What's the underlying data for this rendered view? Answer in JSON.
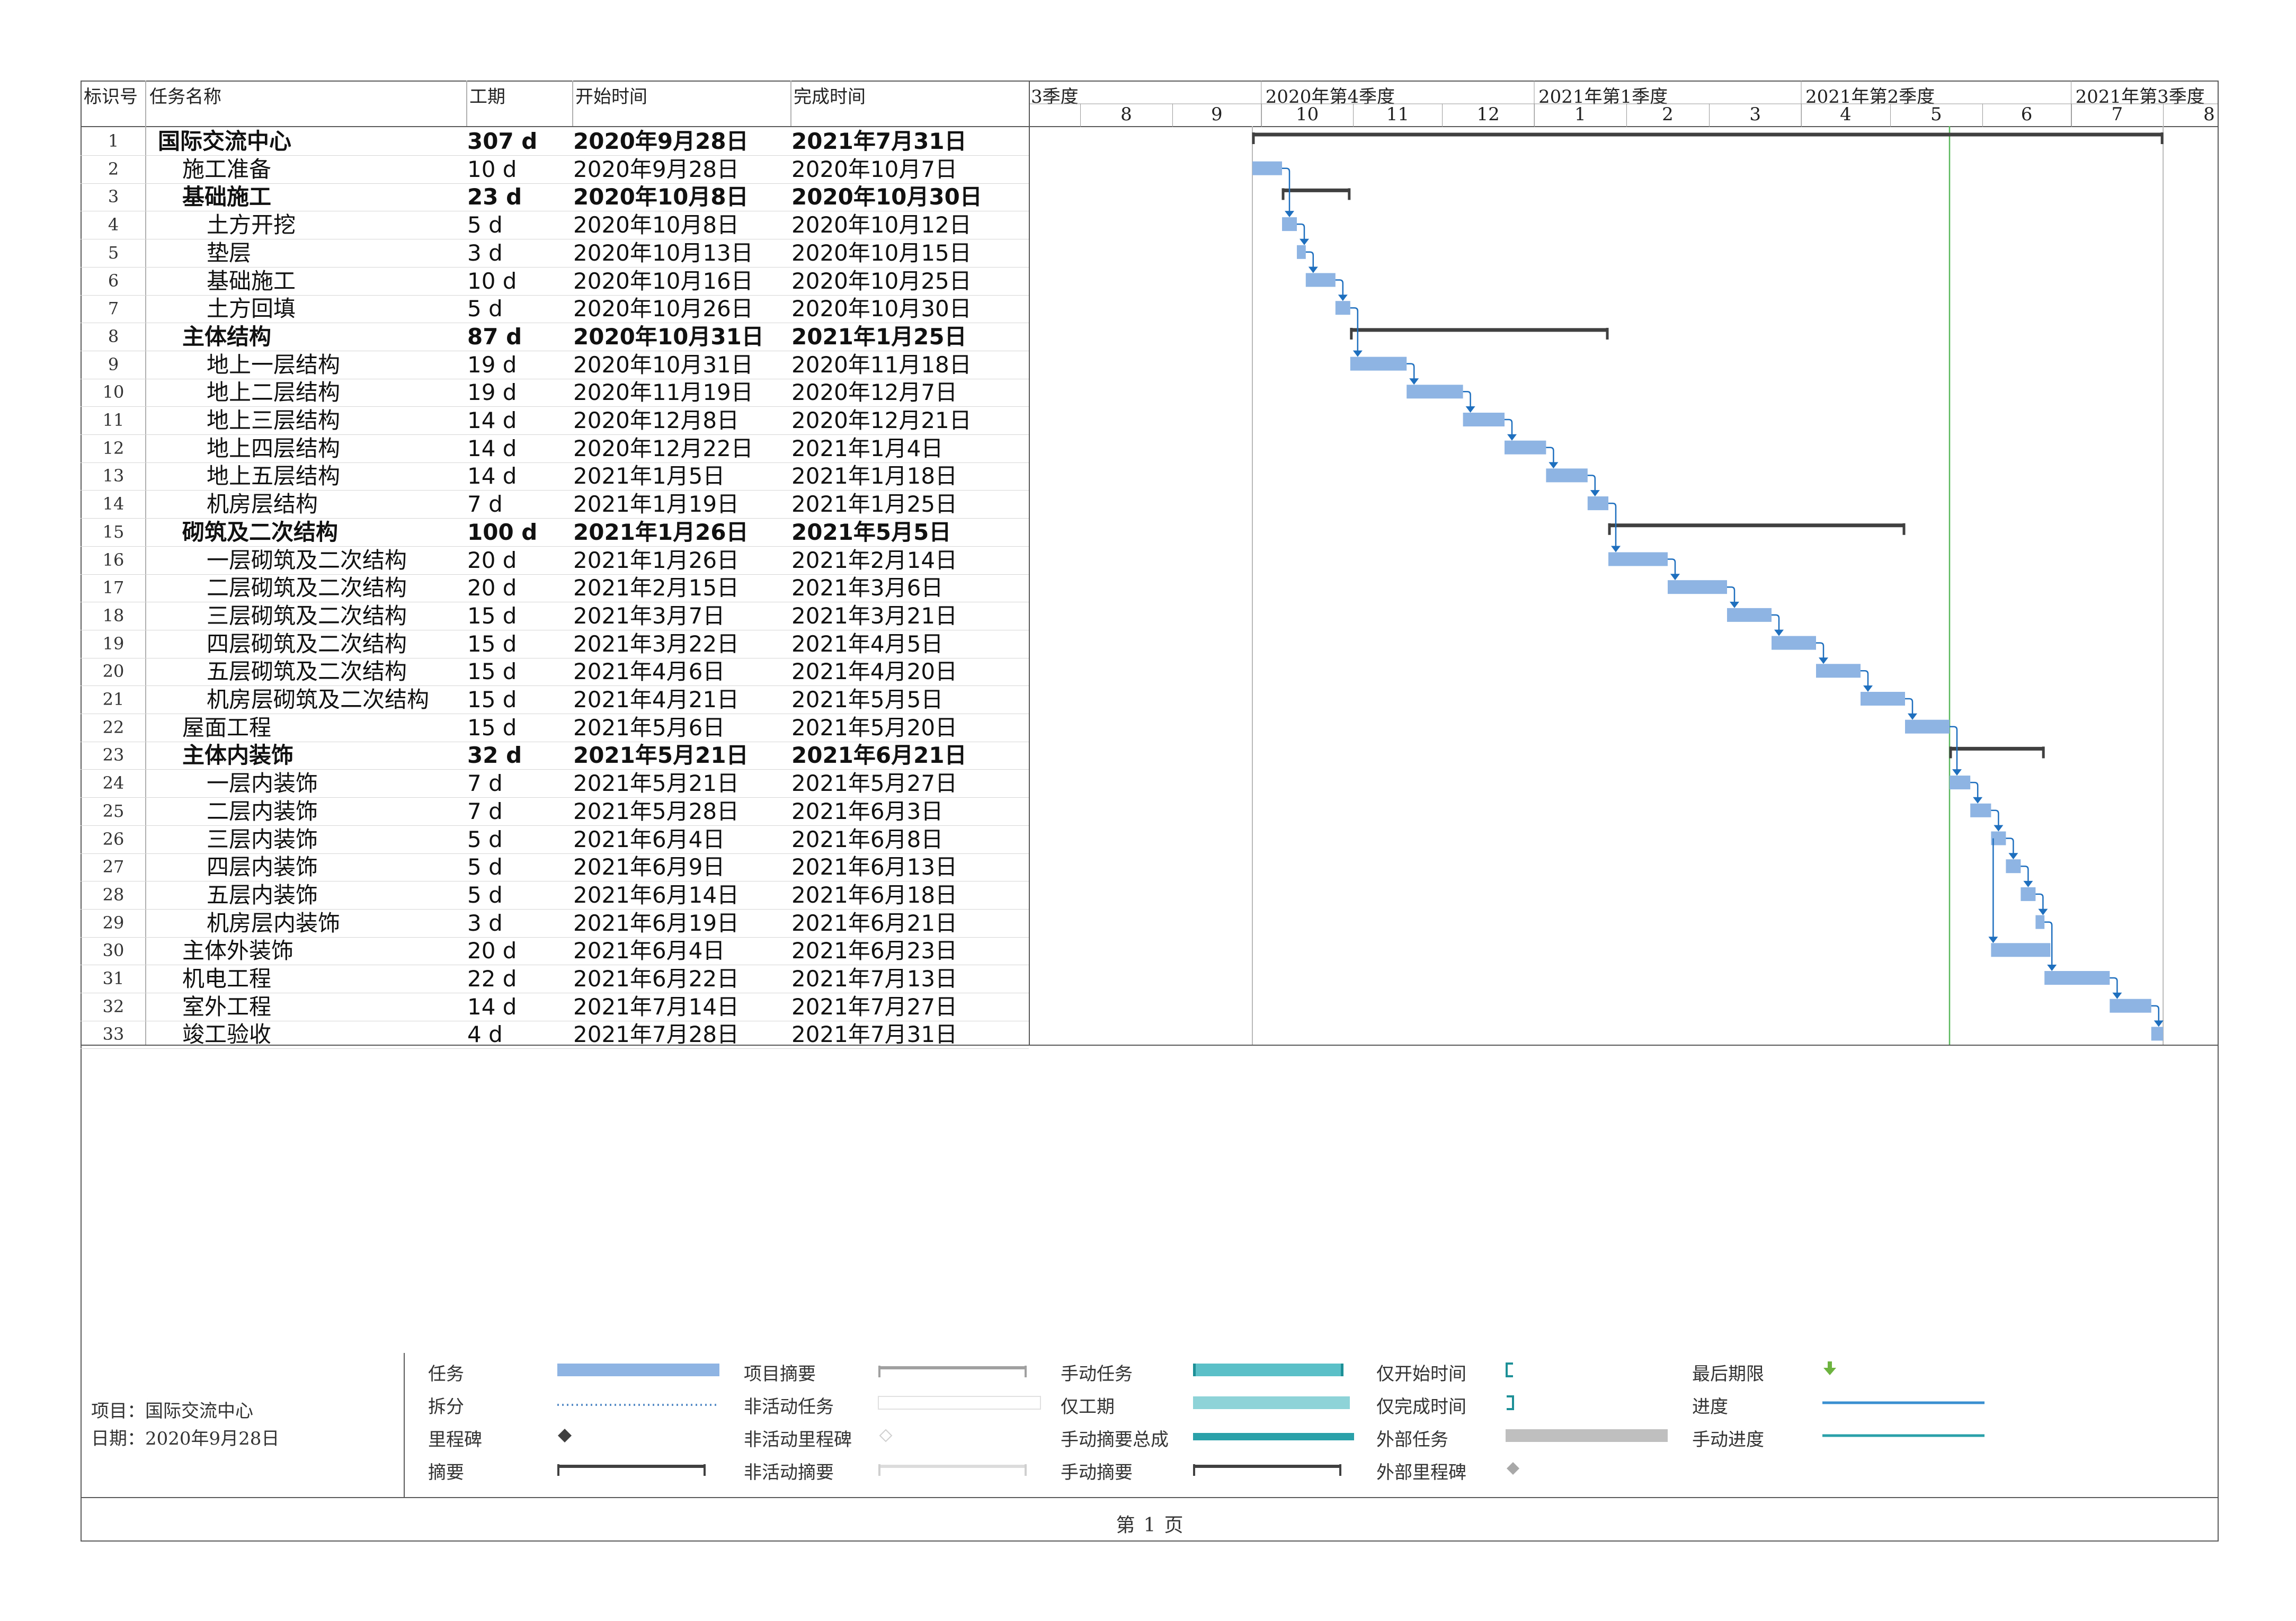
{
  "table": {
    "headers": {
      "id": "标识号",
      "name": "任务名称",
      "duration": "工期",
      "start": "开始时间",
      "finish": "完成时间"
    }
  },
  "timeline": {
    "quarters": [
      {
        "label": "3季度",
        "start": "2020-07-01"
      },
      {
        "label": "2020年第4季度",
        "start": "2020-10-01"
      },
      {
        "label": "2021年第1季度",
        "start": "2021-01-01"
      },
      {
        "label": "2021年第2季度",
        "start": "2021-04-01"
      },
      {
        "label": "2021年第3季度",
        "start": "2021-07-01"
      }
    ],
    "months": [
      {
        "label": "8",
        "start": "2020-08-01"
      },
      {
        "label": "9",
        "start": "2020-09-01"
      },
      {
        "label": "10",
        "start": "2020-10-01"
      },
      {
        "label": "11",
        "start": "2020-11-01"
      },
      {
        "label": "12",
        "start": "2020-12-01"
      },
      {
        "label": "1",
        "start": "2021-01-01"
      },
      {
        "label": "2",
        "start": "2021-02-01"
      },
      {
        "label": "3",
        "start": "2021-03-01"
      },
      {
        "label": "4",
        "start": "2021-04-01"
      },
      {
        "label": "5",
        "start": "2021-05-01"
      },
      {
        "label": "6",
        "start": "2021-06-01"
      },
      {
        "label": "7",
        "start": "2021-07-01"
      },
      {
        "label": "8",
        "start": "2021-08-01"
      }
    ],
    "status_date": "2021-05-21"
  },
  "chart_data": {
    "type": "gantt",
    "tasks": [
      {
        "id": "1",
        "name": "国际交流中心",
        "level": 0,
        "summary": true,
        "duration": "307 d",
        "start_text": "2020年9月28日",
        "finish_text": "2021年7月31日",
        "start": "2020-09-28",
        "finish": "2021-07-31"
      },
      {
        "id": "2",
        "name": "施工准备",
        "level": 1,
        "summary": false,
        "duration": "10 d",
        "start_text": "2020年9月28日",
        "finish_text": "2020年10月7日",
        "start": "2020-09-28",
        "finish": "2020-10-07"
      },
      {
        "id": "3",
        "name": "基础施工",
        "level": 1,
        "summary": true,
        "duration": "23 d",
        "start_text": "2020年10月8日",
        "finish_text": "2020年10月30日",
        "start": "2020-10-08",
        "finish": "2020-10-30"
      },
      {
        "id": "4",
        "name": "土方开挖",
        "level": 2,
        "summary": false,
        "duration": "5 d",
        "start_text": "2020年10月8日",
        "finish_text": "2020年10月12日",
        "start": "2020-10-08",
        "finish": "2020-10-12"
      },
      {
        "id": "5",
        "name": "垫层",
        "level": 2,
        "summary": false,
        "duration": "3 d",
        "start_text": "2020年10月13日",
        "finish_text": "2020年10月15日",
        "start": "2020-10-13",
        "finish": "2020-10-15"
      },
      {
        "id": "6",
        "name": "基础施工",
        "level": 2,
        "summary": false,
        "duration": "10 d",
        "start_text": "2020年10月16日",
        "finish_text": "2020年10月25日",
        "start": "2020-10-16",
        "finish": "2020-10-25"
      },
      {
        "id": "7",
        "name": "土方回填",
        "level": 2,
        "summary": false,
        "duration": "5 d",
        "start_text": "2020年10月26日",
        "finish_text": "2020年10月30日",
        "start": "2020-10-26",
        "finish": "2020-10-30"
      },
      {
        "id": "8",
        "name": "主体结构",
        "level": 1,
        "summary": true,
        "duration": "87 d",
        "start_text": "2020年10月31日",
        "finish_text": "2021年1月25日",
        "start": "2020-10-31",
        "finish": "2021-01-25"
      },
      {
        "id": "9",
        "name": "地上一层结构",
        "level": 2,
        "summary": false,
        "duration": "19 d",
        "start_text": "2020年10月31日",
        "finish_text": "2020年11月18日",
        "start": "2020-10-31",
        "finish": "2020-11-18"
      },
      {
        "id": "10",
        "name": "地上二层结构",
        "level": 2,
        "summary": false,
        "duration": "19 d",
        "start_text": "2020年11月19日",
        "finish_text": "2020年12月7日",
        "start": "2020-11-19",
        "finish": "2020-12-07"
      },
      {
        "id": "11",
        "name": "地上三层结构",
        "level": 2,
        "summary": false,
        "duration": "14 d",
        "start_text": "2020年12月8日",
        "finish_text": "2020年12月21日",
        "start": "2020-12-08",
        "finish": "2020-12-21"
      },
      {
        "id": "12",
        "name": "地上四层结构",
        "level": 2,
        "summary": false,
        "duration": "14 d",
        "start_text": "2020年12月22日",
        "finish_text": "2021年1月4日",
        "start": "2020-12-22",
        "finish": "2021-01-04"
      },
      {
        "id": "13",
        "name": "地上五层结构",
        "level": 2,
        "summary": false,
        "duration": "14 d",
        "start_text": "2021年1月5日",
        "finish_text": "2021年1月18日",
        "start": "2021-01-05",
        "finish": "2021-01-18"
      },
      {
        "id": "14",
        "name": "机房层结构",
        "level": 2,
        "summary": false,
        "duration": "7 d",
        "start_text": "2021年1月19日",
        "finish_text": "2021年1月25日",
        "start": "2021-01-19",
        "finish": "2021-01-25"
      },
      {
        "id": "15",
        "name": "砌筑及二次结构",
        "level": 1,
        "summary": true,
        "duration": "100 d",
        "start_text": "2021年1月26日",
        "finish_text": "2021年5月5日",
        "start": "2021-01-26",
        "finish": "2021-05-05"
      },
      {
        "id": "16",
        "name": "一层砌筑及二次结构",
        "level": 2,
        "summary": false,
        "duration": "20 d",
        "start_text": "2021年1月26日",
        "finish_text": "2021年2月14日",
        "start": "2021-01-26",
        "finish": "2021-02-14"
      },
      {
        "id": "17",
        "name": "二层砌筑及二次结构",
        "level": 2,
        "summary": false,
        "duration": "20 d",
        "start_text": "2021年2月15日",
        "finish_text": "2021年3月6日",
        "start": "2021-02-15",
        "finish": "2021-03-06"
      },
      {
        "id": "18",
        "name": "三层砌筑及二次结构",
        "level": 2,
        "summary": false,
        "duration": "15 d",
        "start_text": "2021年3月7日",
        "finish_text": "2021年3月21日",
        "start": "2021-03-07",
        "finish": "2021-03-21"
      },
      {
        "id": "19",
        "name": "四层砌筑及二次结构",
        "level": 2,
        "summary": false,
        "duration": "15 d",
        "start_text": "2021年3月22日",
        "finish_text": "2021年4月5日",
        "start": "2021-03-22",
        "finish": "2021-04-05"
      },
      {
        "id": "20",
        "name": "五层砌筑及二次结构",
        "level": 2,
        "summary": false,
        "duration": "15 d",
        "start_text": "2021年4月6日",
        "finish_text": "2021年4月20日",
        "start": "2021-04-06",
        "finish": "2021-04-20"
      },
      {
        "id": "21",
        "name": "机房层砌筑及二次结构",
        "level": 2,
        "summary": false,
        "duration": "15 d",
        "start_text": "2021年4月21日",
        "finish_text": "2021年5月5日",
        "start": "2021-04-21",
        "finish": "2021-05-05"
      },
      {
        "id": "22",
        "name": "屋面工程",
        "level": 1,
        "summary": false,
        "duration": "15 d",
        "start_text": "2021年5月6日",
        "finish_text": "2021年5月20日",
        "start": "2021-05-06",
        "finish": "2021-05-20"
      },
      {
        "id": "23",
        "name": "主体内装饰",
        "level": 1,
        "summary": true,
        "duration": "32 d",
        "start_text": "2021年5月21日",
        "finish_text": "2021年6月21日",
        "start": "2021-05-21",
        "finish": "2021-06-21"
      },
      {
        "id": "24",
        "name": "一层内装饰",
        "level": 2,
        "summary": false,
        "duration": "7 d",
        "start_text": "2021年5月21日",
        "finish_text": "2021年5月27日",
        "start": "2021-05-21",
        "finish": "2021-05-27"
      },
      {
        "id": "25",
        "name": "二层内装饰",
        "level": 2,
        "summary": false,
        "duration": "7 d",
        "start_text": "2021年5月28日",
        "finish_text": "2021年6月3日",
        "start": "2021-05-28",
        "finish": "2021-06-03"
      },
      {
        "id": "26",
        "name": "三层内装饰",
        "level": 2,
        "summary": false,
        "duration": "5 d",
        "start_text": "2021年6月4日",
        "finish_text": "2021年6月8日",
        "start": "2021-06-04",
        "finish": "2021-06-08"
      },
      {
        "id": "27",
        "name": "四层内装饰",
        "level": 2,
        "summary": false,
        "duration": "5 d",
        "start_text": "2021年6月9日",
        "finish_text": "2021年6月13日",
        "start": "2021-06-09",
        "finish": "2021-06-13"
      },
      {
        "id": "28",
        "name": "五层内装饰",
        "level": 2,
        "summary": false,
        "duration": "5 d",
        "start_text": "2021年6月14日",
        "finish_text": "2021年6月18日",
        "start": "2021-06-14",
        "finish": "2021-06-18"
      },
      {
        "id": "29",
        "name": "机房层内装饰",
        "level": 2,
        "summary": false,
        "duration": "3 d",
        "start_text": "2021年6月19日",
        "finish_text": "2021年6月21日",
        "start": "2021-06-19",
        "finish": "2021-06-21"
      },
      {
        "id": "30",
        "name": "主体外装饰",
        "level": 1,
        "summary": false,
        "duration": "20 d",
        "start_text": "2021年6月4日",
        "finish_text": "2021年6月23日",
        "start": "2021-06-04",
        "finish": "2021-06-23"
      },
      {
        "id": "31",
        "name": "机电工程",
        "level": 1,
        "summary": false,
        "duration": "22 d",
        "start_text": "2021年6月22日",
        "finish_text": "2021年7月13日",
        "start": "2021-06-22",
        "finish": "2021-07-13"
      },
      {
        "id": "32",
        "name": "室外工程",
        "level": 1,
        "summary": false,
        "duration": "14 d",
        "start_text": "2021年7月14日",
        "finish_text": "2021年7月27日",
        "start": "2021-07-14",
        "finish": "2021-07-27"
      },
      {
        "id": "33",
        "name": "竣工验收",
        "level": 1,
        "summary": false,
        "duration": "4 d",
        "start_text": "2021年7月28日",
        "finish_text": "2021年7月31日",
        "start": "2021-07-28",
        "finish": "2021-07-31"
      }
    ],
    "links": [
      [
        "2",
        "4"
      ],
      [
        "4",
        "5"
      ],
      [
        "5",
        "6"
      ],
      [
        "6",
        "7"
      ],
      [
        "7",
        "9"
      ],
      [
        "9",
        "10"
      ],
      [
        "10",
        "11"
      ],
      [
        "11",
        "12"
      ],
      [
        "12",
        "13"
      ],
      [
        "13",
        "14"
      ],
      [
        "14",
        "16"
      ],
      [
        "16",
        "17"
      ],
      [
        "17",
        "18"
      ],
      [
        "18",
        "19"
      ],
      [
        "19",
        "20"
      ],
      [
        "20",
        "21"
      ],
      [
        "21",
        "22"
      ],
      [
        "22",
        "24"
      ],
      [
        "24",
        "25"
      ],
      [
        "25",
        "26"
      ],
      [
        "26",
        "27"
      ],
      [
        "27",
        "28"
      ],
      [
        "28",
        "29"
      ],
      [
        "26",
        "30"
      ],
      [
        "29",
        "31"
      ],
      [
        "31",
        "32"
      ],
      [
        "32",
        "33"
      ]
    ]
  },
  "footer": {
    "project_label": "项目：国际交流中心",
    "date_label": "日期：2020年9月28日",
    "page_prefix": "第",
    "page_number": "1",
    "page_suffix": "页"
  },
  "legend": {
    "items": [
      {
        "label": "任务",
        "icon": "task-bar-icon"
      },
      {
        "label": "拆分",
        "icon": "split-icon"
      },
      {
        "label": "里程碑",
        "icon": "milestone-icon"
      },
      {
        "label": "摘要",
        "icon": "summary-icon"
      },
      {
        "label": "项目摘要",
        "icon": "project-summary-icon"
      },
      {
        "label": "非活动任务",
        "icon": "inactive-task-icon"
      },
      {
        "label": "非活动里程碑",
        "icon": "inactive-milestone-icon"
      },
      {
        "label": "非活动摘要",
        "icon": "inactive-summary-icon"
      },
      {
        "label": "手动任务",
        "icon": "manual-task-icon"
      },
      {
        "label": "仅工期",
        "icon": "duration-only-icon"
      },
      {
        "label": "手动摘要总成",
        "icon": "manual-summary-rollup-icon"
      },
      {
        "label": "手动摘要",
        "icon": "manual-summary-icon"
      },
      {
        "label": "仅开始时间",
        "icon": "start-only-icon"
      },
      {
        "label": "仅完成时间",
        "icon": "finish-only-icon"
      },
      {
        "label": "外部任务",
        "icon": "external-task-icon"
      },
      {
        "label": "外部里程碑",
        "icon": "external-milestone-icon"
      },
      {
        "label": "最后期限",
        "icon": "deadline-arrow-icon"
      },
      {
        "label": "进度",
        "icon": "progress-line-icon"
      },
      {
        "label": "手动进度",
        "icon": "manual-progress-line-icon"
      }
    ]
  },
  "colors": {
    "task": "#8db4e2",
    "summary": "#404040",
    "link": "#1f6fbf",
    "status_line": "#5cb85c",
    "manual": "#5bc0c8",
    "progress": "#3a8fd0",
    "deadline": "#6cb33f",
    "external": "#bfbfbf"
  }
}
